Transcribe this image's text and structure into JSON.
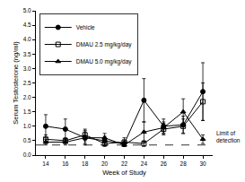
{
  "chart_data": {
    "type": "line",
    "x_label": "Week of Study",
    "y_label": "Serum Testosterone (ng/ml)",
    "x": [
      14,
      16,
      18,
      20,
      22,
      24,
      26,
      28,
      30
    ],
    "series": [
      {
        "name": "Vehicle",
        "color": "#000000",
        "marker": "circle",
        "line_style": "solid",
        "values": [
          1.0,
          0.9,
          0.6,
          0.5,
          0.4,
          1.9,
          1.0,
          1.05,
          2.2
        ],
        "error": [
          0.4,
          0.35,
          0.25,
          0.15,
          0.1,
          0.75,
          0.25,
          0.3,
          1.0
        ]
      },
      {
        "name": "DMAU 2.5 mg/kg/day",
        "color": "#000000",
        "marker": "square-open",
        "line_style": "solid",
        "values": [
          0.55,
          0.5,
          0.7,
          0.4,
          0.45,
          0.4,
          0.9,
          1.0,
          1.85
        ],
        "error": [
          0.15,
          0.1,
          0.2,
          0.1,
          0.15,
          0.1,
          0.2,
          0.25,
          0.65
        ]
      },
      {
        "name": "DMAU 5.0 mg/kg/day",
        "color": "#000000",
        "marker": "triangle-up",
        "line_style": "solid",
        "values": [
          0.45,
          0.45,
          0.6,
          0.6,
          0.35,
          0.8,
          0.95,
          1.5,
          0.55
        ],
        "error": [
          0.1,
          0.1,
          0.2,
          0.15,
          0.05,
          0.35,
          0.2,
          0.45,
          0.15
        ]
      }
    ],
    "annotations": [
      {
        "text": "Limit of detection",
        "y": 0.35,
        "line_style": "dash"
      }
    ],
    "xlim": [
      13,
      31
    ],
    "xticks": [
      14,
      16,
      18,
      20,
      22,
      24,
      26,
      28,
      30
    ],
    "ylim": [
      0,
      5
    ],
    "yticks": [
      {
        "value": 0,
        "label": "0.0"
      },
      0.5,
      {
        "value": 1,
        "label": "1.0"
      },
      1.5,
      {
        "value": 2,
        "label": "2.0"
      },
      2.5,
      {
        "value": 3,
        "label": "3.0"
      },
      3.5,
      {
        "value": 4,
        "label": "4.0"
      },
      4.5,
      {
        "value": 5,
        "label": "5.0"
      }
    ],
    "grid": false,
    "legend": "upper left"
  }
}
